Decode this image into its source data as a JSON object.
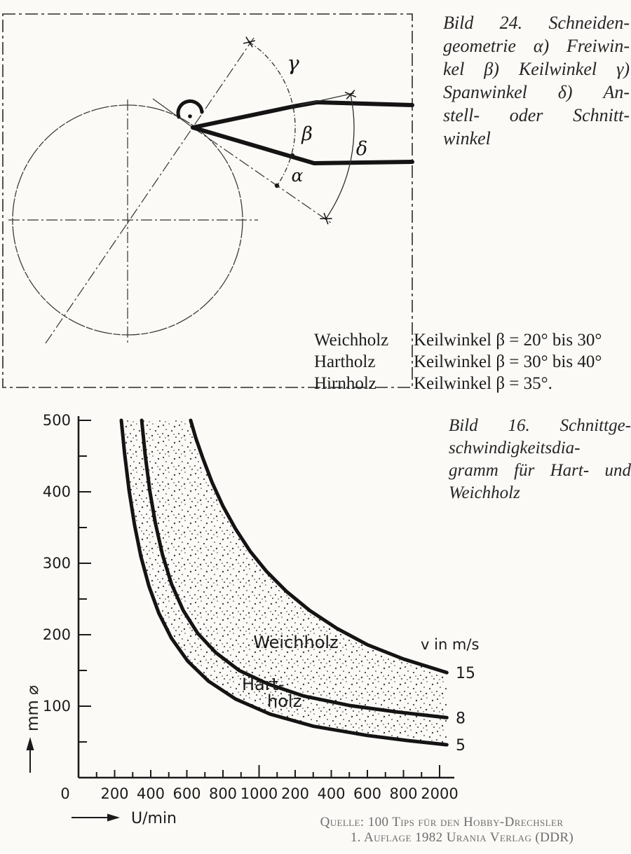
{
  "page_bg": "#fbfaf7",
  "ink_color": "#1b1b1b",
  "figure24": {
    "caption_lines": [
      "Bild 24. Schneiden-",
      "geometrie α) Freiwin-",
      "kel β) Keilwinkel γ)",
      "Spanwinkel δ) An-",
      "stell- oder Schnitt-",
      "winkel"
    ],
    "angle_labels": {
      "alpha": "α",
      "beta": "β",
      "gamma": "γ",
      "delta": "δ"
    }
  },
  "keilwinkel_table": {
    "rows": [
      {
        "material": "Weichholz",
        "value": "Keilwinkel β = 20° bis 30°"
      },
      {
        "material": "Hartholz",
        "value": "Keilwinkel β = 30° bis 40°"
      },
      {
        "material": "Hirnholz",
        "value": "Keilwinkel β = 35°."
      }
    ]
  },
  "figure16": {
    "caption_lines": [
      "Bild 16. Schnittge-",
      "schwindigkeitsdia-",
      "gramm für Hart- und",
      "Weichholz"
    ]
  },
  "chart_data": {
    "type": "line",
    "title": "Bild 16. Schnittgeschwindigkeitsdiagramm für Hart- und Weichholz",
    "xlabel": "U/min",
    "ylabel": "mm ⌀",
    "xlim": [
      0,
      2100
    ],
    "ylim": [
      0,
      500
    ],
    "grid": false,
    "legend_title": "v in m/s",
    "x_ticks": [
      {
        "n": 0,
        "label": "0"
      },
      {
        "n": 200,
        "label": "200"
      },
      {
        "n": 400,
        "label": "400"
      },
      {
        "n": 600,
        "label": "600"
      },
      {
        "n": 800,
        "label": "800"
      },
      {
        "n": 1000,
        "label": "1000"
      },
      {
        "n": 1200,
        "label": "200"
      },
      {
        "n": 1400,
        "label": "400"
      },
      {
        "n": 1600,
        "label": "600"
      },
      {
        "n": 1800,
        "label": "800"
      },
      {
        "n": 2000,
        "label": "2000"
      }
    ],
    "y_ticks": [
      100,
      200,
      300,
      400,
      500
    ],
    "series": [
      {
        "name": "v = 15 m/s",
        "end_label": "15",
        "points": [
          [
            621,
            500
          ],
          [
            650,
            475
          ],
          [
            690,
            446
          ],
          [
            740,
            413
          ],
          [
            800,
            380
          ],
          [
            870,
            348
          ],
          [
            950,
            317
          ],
          [
            1040,
            289
          ],
          [
            1150,
            261
          ],
          [
            1280,
            234
          ],
          [
            1430,
            209
          ],
          [
            1600,
            186
          ],
          [
            1800,
            166
          ],
          [
            2040,
            147
          ]
        ]
      },
      {
        "name": "v = 8 m/s",
        "end_label": "8",
        "points": [
          [
            350,
            500
          ],
          [
            370,
            450
          ],
          [
            395,
            401
          ],
          [
            425,
            357
          ],
          [
            465,
            312
          ],
          [
            515,
            271
          ],
          [
            580,
            234
          ],
          [
            660,
            202
          ],
          [
            760,
            175
          ],
          [
            890,
            150
          ],
          [
            1050,
            131
          ],
          [
            1250,
            114
          ],
          [
            1500,
            101
          ],
          [
            1760,
            92
          ],
          [
            2040,
            84
          ]
        ]
      },
      {
        "name": "v = 5 m/s",
        "end_label": "5",
        "points": [
          [
            237,
            500
          ],
          [
            255,
            454
          ],
          [
            280,
            402
          ],
          [
            310,
            354
          ],
          [
            345,
            310
          ],
          [
            390,
            268
          ],
          [
            445,
            230
          ],
          [
            515,
            195
          ],
          [
            605,
            163
          ],
          [
            720,
            135
          ],
          [
            870,
            110
          ],
          [
            1060,
            89
          ],
          [
            1300,
            72
          ],
          [
            1600,
            59
          ],
          [
            1820,
            52
          ],
          [
            2040,
            46
          ]
        ]
      }
    ],
    "band": {
      "between": [
        "v = 5 m/s",
        "v = 15 m/s"
      ],
      "label_upper": "Weichholz",
      "label_lower_line1": "Hart-",
      "label_lower_line2": "holz"
    }
  },
  "source": {
    "line1": "Quelle: 100 Tips für den Hobby-Drechsler",
    "line2": "1. Auflage 1982 Urania Verlag (DDR)"
  }
}
